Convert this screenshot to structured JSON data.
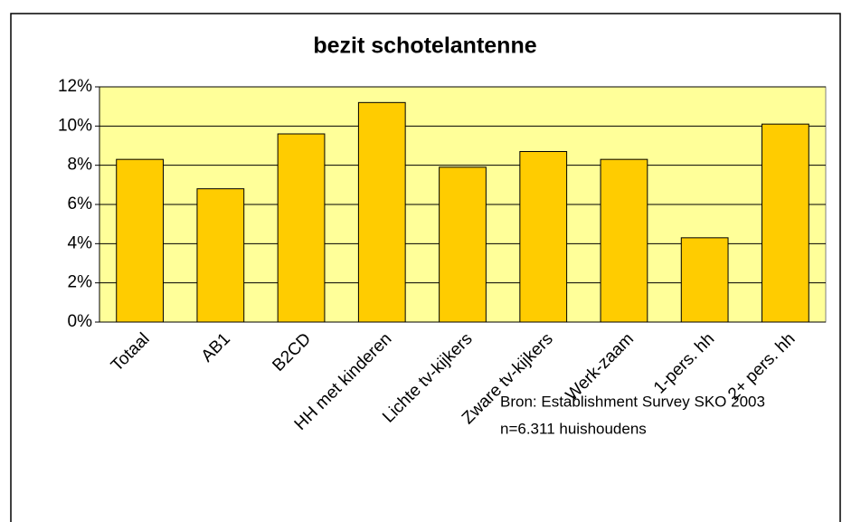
{
  "chart_data": {
    "type": "bar",
    "title": "bezit schotelantenne",
    "categories": [
      "Totaal",
      "AB1",
      "B2CD",
      "HH met kinderen",
      "Lichte tv-kijkers",
      "Zware tv-kijkers",
      "Werk-zaam",
      "1-pers. hh",
      "2+ pers. hh"
    ],
    "values": [
      8.3,
      6.8,
      9.6,
      11.2,
      7.9,
      8.7,
      8.3,
      4.3,
      10.1
    ],
    "color": "#FFCC00",
    "ylim": [
      0,
      12
    ],
    "yticks": [
      {
        "value": 0,
        "label": "0%"
      },
      {
        "value": 2,
        "label": "2%"
      },
      {
        "value": 4,
        "label": "4%"
      },
      {
        "value": 6,
        "label": "6%"
      },
      {
        "value": 8,
        "label": "8%"
      },
      {
        "value": 10,
        "label": "10%"
      },
      {
        "value": 12,
        "label": "12%"
      }
    ],
    "grid": true,
    "annotations": [
      "Bron: Establishment Survey SKO 2003",
      "n=6.311 huishoudens"
    ]
  }
}
